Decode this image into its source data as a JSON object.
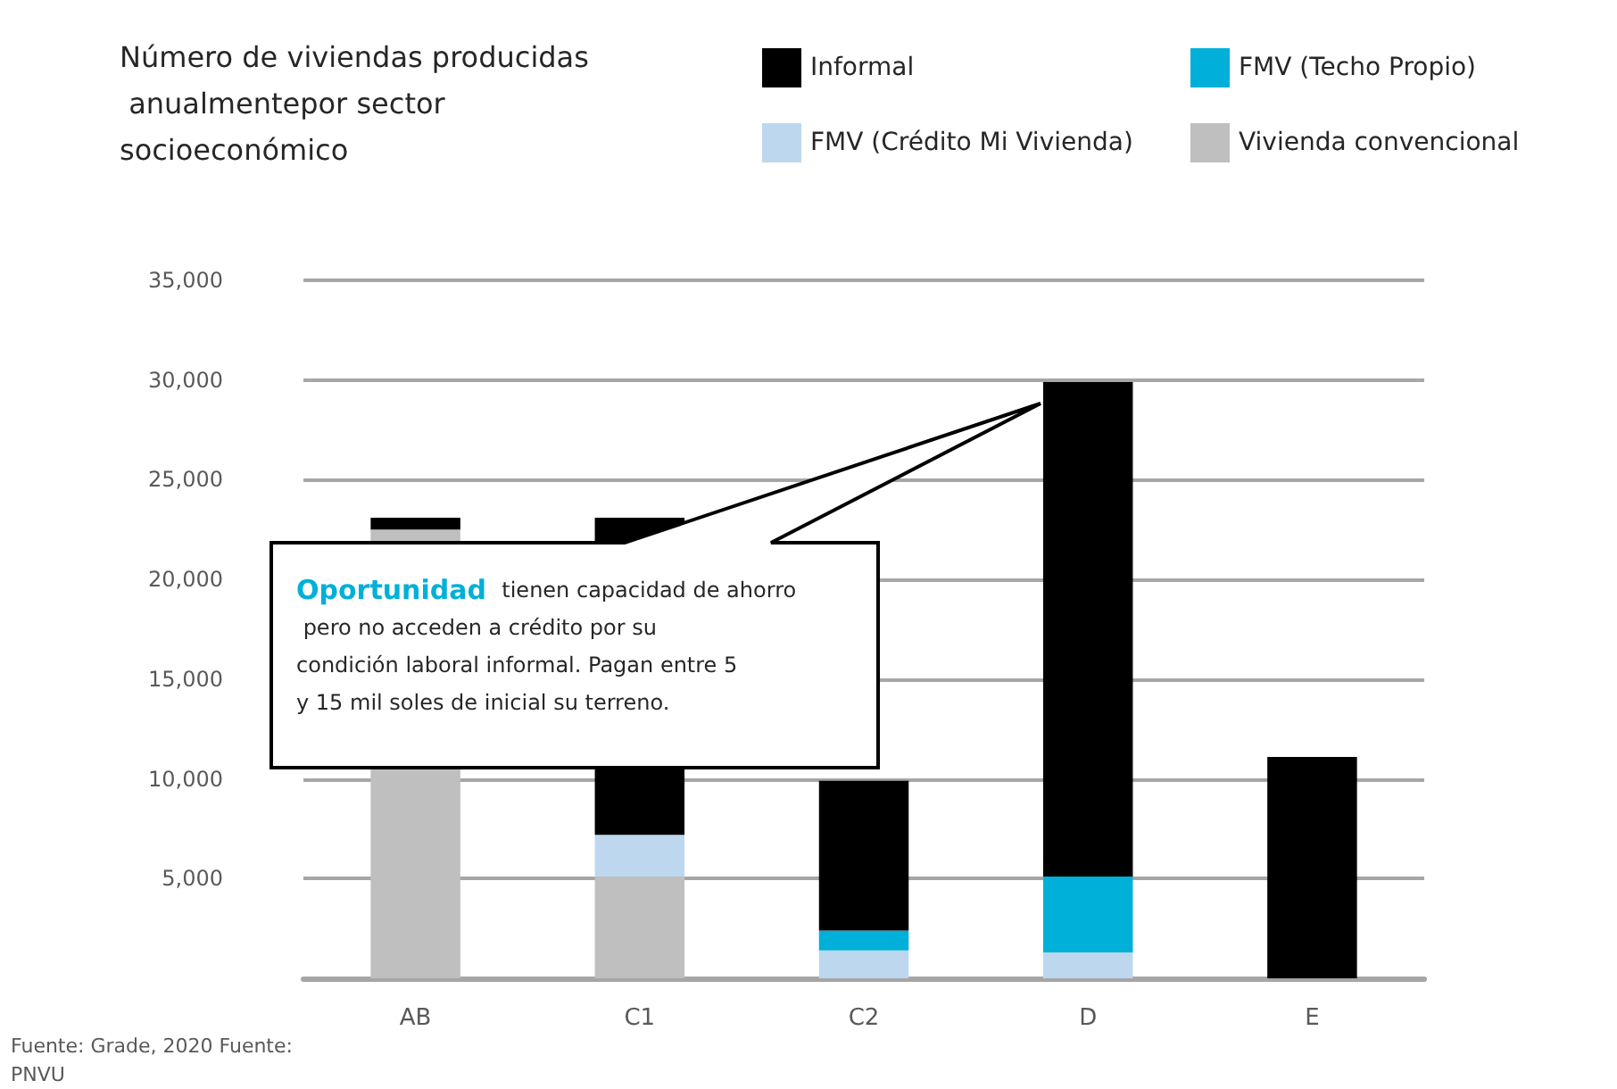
{
  "chart_data": {
    "type": "bar",
    "title": "Número de viviendas producidas anualmentepor sector socioeconómico",
    "categories": [
      "AB",
      "C1",
      "C2",
      "D",
      "E"
    ],
    "stacked": true,
    "series": [
      {
        "name": "Vivienda convencional",
        "color": "#bfbfbf",
        "values": [
          22500,
          5100,
          0,
          0,
          0
        ]
      },
      {
        "name": "FMV (Crédito Mi Vivienda)",
        "color": "#bdd7ee",
        "values": [
          0,
          2100,
          1400,
          1300,
          0
        ]
      },
      {
        "name": "FMV (Techo Propio)",
        "color": "#00b0d8",
        "values": [
          0,
          0,
          1000,
          3800,
          0
        ]
      },
      {
        "name": "Informal",
        "color": "#000000",
        "values": [
          600,
          15900,
          7500,
          24800,
          11100
        ]
      }
    ],
    "ylim": [
      0,
      35000
    ],
    "yticks": [
      {
        "value": 0,
        "label": null
      },
      {
        "value": 5000,
        "label": "5,000"
      },
      {
        "value": 10000,
        "label": "10,000"
      },
      {
        "value": 15000,
        "label": "15,000"
      },
      {
        "value": 20000,
        "label": "20,000"
      },
      {
        "value": 25000,
        "label": "25,000"
      },
      {
        "value": 30000,
        "label": "30,000"
      },
      {
        "value": 35000,
        "label": "35,000"
      }
    ],
    "grid": "y",
    "legend": "top right",
    "annotations": [
      "Oportunidad tienen capacidad de ahorro pero no acceden a crédito por su condición laboral informal. Pagan entre 5 y 15 mil soles de inicial su terreno.",
      "Fuente: Grade, 2020 Fuente: PNVU"
    ]
  }
}
